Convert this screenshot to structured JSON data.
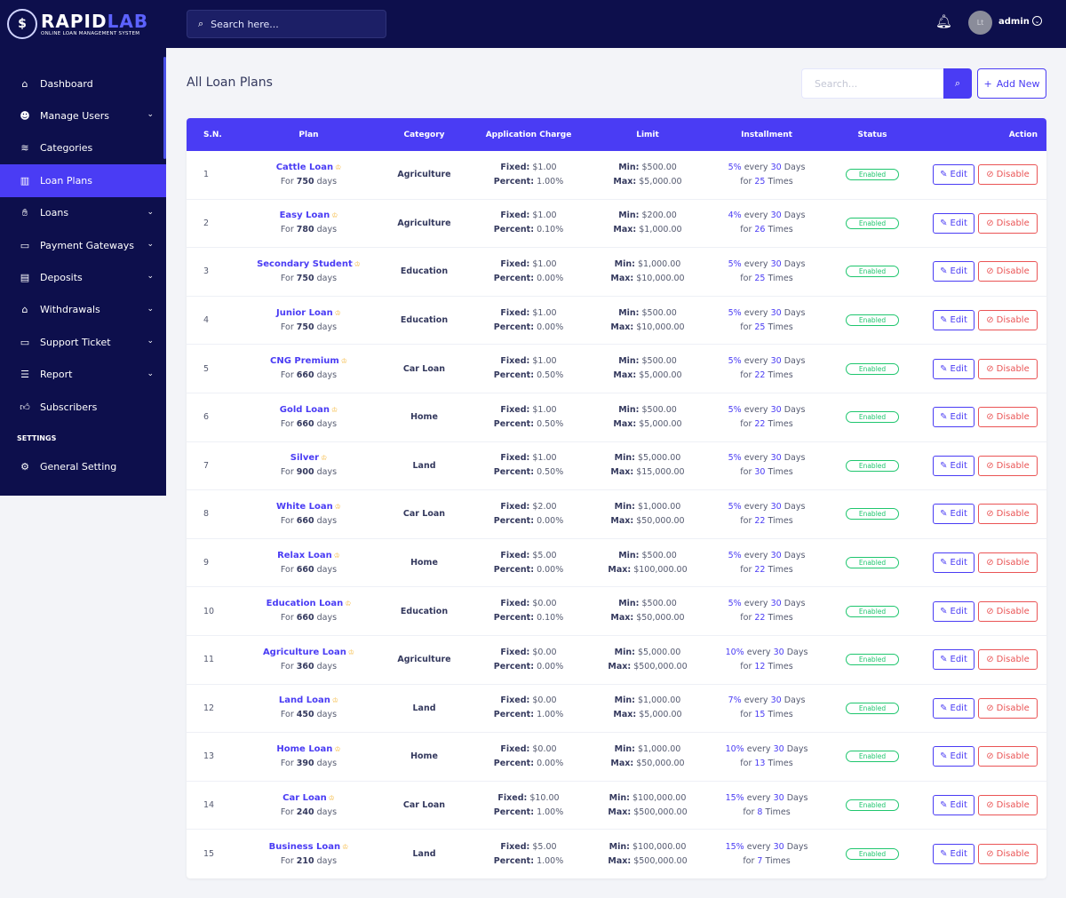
{
  "brand": {
    "name_part1": "RAPID",
    "name_part2": "LAB",
    "tagline": "ONLINE LOAN MANAGEMENT SYSTEM",
    "accent": "#4a3cf4",
    "sidebar_bg": "#0d0f4c"
  },
  "sidebar": {
    "items": [
      {
        "label": "Dashboard",
        "icon": "home-icon",
        "has_children": false,
        "active": false
      },
      {
        "label": "Manage Users",
        "icon": "users-icon",
        "has_children": true,
        "active": false
      },
      {
        "label": "Categories",
        "icon": "layers-icon",
        "has_children": false,
        "active": false
      },
      {
        "label": "Loan Plans",
        "icon": "bar-chart-icon",
        "has_children": false,
        "active": true
      },
      {
        "label": "Loans",
        "icon": "hand-coin-icon",
        "has_children": true,
        "active": false
      },
      {
        "label": "Payment Gateways",
        "icon": "credit-card-icon",
        "has_children": true,
        "active": false
      },
      {
        "label": "Deposits",
        "icon": "file-money-icon",
        "has_children": true,
        "active": false
      },
      {
        "label": "Withdrawals",
        "icon": "bank-icon",
        "has_children": true,
        "active": false
      },
      {
        "label": "Support Ticket",
        "icon": "ticket-icon",
        "has_children": true,
        "active": false
      },
      {
        "label": "Report",
        "icon": "list-icon",
        "has_children": true,
        "active": false
      },
      {
        "label": "Subscribers",
        "icon": "thumbs-up-icon",
        "has_children": false,
        "active": false
      }
    ],
    "settings_heading": "SETTINGS",
    "settings_items": [
      {
        "label": "General Setting",
        "icon": "gear-icon"
      }
    ]
  },
  "topbar": {
    "search_placeholder": "Search here...",
    "avatar_text": "Lt",
    "user_name": "admin"
  },
  "page": {
    "title": "All Loan Plans",
    "filter_placeholder": "Search...",
    "add_new_label": "Add New"
  },
  "table": {
    "headers": [
      "S.N.",
      "Plan",
      "Category",
      "Application Charge",
      "Limit",
      "Installment",
      "Status",
      "Action"
    ],
    "labels": {
      "for": "For",
      "days": "days",
      "fixed": "Fixed:",
      "percent": "Percent:",
      "min": "Min:",
      "max": "Max:",
      "every": "every",
      "days_cap": "Days",
      "times": "Times",
      "edit": "Edit",
      "disable": "Disable"
    },
    "rows": [
      {
        "sn": "1",
        "plan": "Cattle Loan",
        "days": "750",
        "category": "Agriculture",
        "fixed": "$1.00",
        "percent": "1.00%",
        "min": "$500.00",
        "max": "$5,000.00",
        "rate": "5%",
        "every": "30",
        "times": "25",
        "status": "Enabled"
      },
      {
        "sn": "2",
        "plan": "Easy Loan",
        "days": "780",
        "category": "Agriculture",
        "fixed": "$1.00",
        "percent": "0.10%",
        "min": "$200.00",
        "max": "$1,000.00",
        "rate": "4%",
        "every": "30",
        "times": "26",
        "status": "Enabled"
      },
      {
        "sn": "3",
        "plan": "Secondary Student",
        "days": "750",
        "category": "Education",
        "fixed": "$1.00",
        "percent": "0.00%",
        "min": "$1,000.00",
        "max": "$10,000.00",
        "rate": "5%",
        "every": "30",
        "times": "25",
        "status": "Enabled"
      },
      {
        "sn": "4",
        "plan": "Junior Loan",
        "days": "750",
        "category": "Education",
        "fixed": "$1.00",
        "percent": "0.00%",
        "min": "$500.00",
        "max": "$10,000.00",
        "rate": "5%",
        "every": "30",
        "times": "25",
        "status": "Enabled"
      },
      {
        "sn": "5",
        "plan": "CNG Premium",
        "days": "660",
        "category": "Car Loan",
        "fixed": "$1.00",
        "percent": "0.50%",
        "min": "$500.00",
        "max": "$5,000.00",
        "rate": "5%",
        "every": "30",
        "times": "22",
        "status": "Enabled"
      },
      {
        "sn": "6",
        "plan": "Gold Loan",
        "days": "660",
        "category": "Home",
        "fixed": "$1.00",
        "percent": "0.50%",
        "min": "$500.00",
        "max": "$5,000.00",
        "rate": "5%",
        "every": "30",
        "times": "22",
        "status": "Enabled"
      },
      {
        "sn": "7",
        "plan": "Silver",
        "days": "900",
        "category": "Land",
        "fixed": "$1.00",
        "percent": "0.50%",
        "min": "$5,000.00",
        "max": "$15,000.00",
        "rate": "5%",
        "every": "30",
        "times": "30",
        "status": "Enabled"
      },
      {
        "sn": "8",
        "plan": "White Loan",
        "days": "660",
        "category": "Car Loan",
        "fixed": "$2.00",
        "percent": "0.00%",
        "min": "$1,000.00",
        "max": "$50,000.00",
        "rate": "5%",
        "every": "30",
        "times": "22",
        "status": "Enabled"
      },
      {
        "sn": "9",
        "plan": "Relax Loan",
        "days": "660",
        "category": "Home",
        "fixed": "$5.00",
        "percent": "0.00%",
        "min": "$500.00",
        "max": "$100,000.00",
        "rate": "5%",
        "every": "30",
        "times": "22",
        "status": "Enabled"
      },
      {
        "sn": "10",
        "plan": "Education Loan",
        "days": "660",
        "category": "Education",
        "fixed": "$0.00",
        "percent": "0.10%",
        "min": "$500.00",
        "max": "$50,000.00",
        "rate": "5%",
        "every": "30",
        "times": "22",
        "status": "Enabled"
      },
      {
        "sn": "11",
        "plan": "Agriculture Loan",
        "days": "360",
        "category": "Agriculture",
        "fixed": "$0.00",
        "percent": "0.00%",
        "min": "$5,000.00",
        "max": "$500,000.00",
        "rate": "10%",
        "every": "30",
        "times": "12",
        "status": "Enabled"
      },
      {
        "sn": "12",
        "plan": "Land Loan",
        "days": "450",
        "category": "Land",
        "fixed": "$0.00",
        "percent": "1.00%",
        "min": "$1,000.00",
        "max": "$5,000.00",
        "rate": "7%",
        "every": "30",
        "times": "15",
        "status": "Enabled"
      },
      {
        "sn": "13",
        "plan": "Home Loan",
        "days": "390",
        "category": "Home",
        "fixed": "$0.00",
        "percent": "0.00%",
        "min": "$1,000.00",
        "max": "$50,000.00",
        "rate": "10%",
        "every": "30",
        "times": "13",
        "status": "Enabled"
      },
      {
        "sn": "14",
        "plan": "Car Loan",
        "days": "240",
        "category": "Car Loan",
        "fixed": "$10.00",
        "percent": "1.00%",
        "min": "$100,000.00",
        "max": "$500,000.00",
        "rate": "15%",
        "every": "30",
        "times": "8",
        "status": "Enabled"
      },
      {
        "sn": "15",
        "plan": "Business Loan",
        "days": "210",
        "category": "Land",
        "fixed": "$5.00",
        "percent": "1.00%",
        "min": "$100,000.00",
        "max": "$500,000.00",
        "rate": "15%",
        "every": "30",
        "times": "7",
        "status": "Enabled"
      }
    ]
  }
}
